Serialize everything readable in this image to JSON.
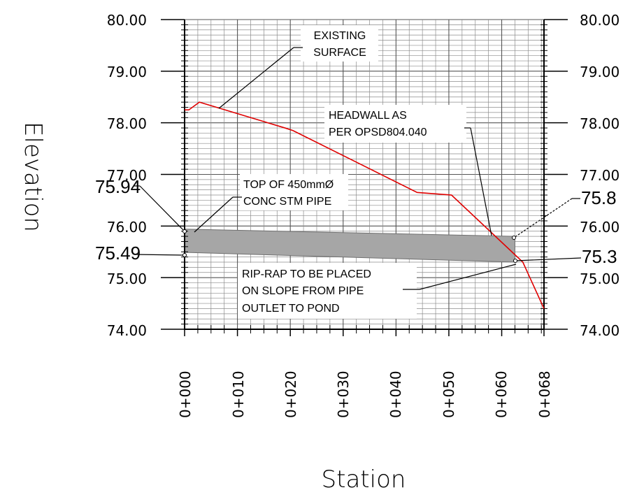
{
  "axes": {
    "xlabel": "Station",
    "ylabel": "Elevation"
  },
  "elevation_ticks": [
    "80.00",
    "79.00",
    "78.00",
    "77.00",
    "76.00",
    "75.00",
    "74.00"
  ],
  "station_ticks": [
    "0+000",
    "0+010",
    "0+020",
    "0+030",
    "0+040",
    "0+050",
    "0+060",
    "0+068"
  ],
  "pipe_labels": {
    "left_top": "75.94",
    "left_bottom": "75.49",
    "right_top": "75.8",
    "right_bottom": "75.3"
  },
  "annotations": {
    "existing_surface": [
      "EXISTING",
      "SURFACE"
    ],
    "headwall": [
      "HEADWALL AS",
      "PER OPSD804.040"
    ],
    "top_of_pipe": [
      "TOP OF 450mmØ",
      "CONC STM PIPE"
    ],
    "rip_rap": [
      "RIP-RAP TO BE PLACED",
      "ON SLOPE FROM PIPE",
      "OUTLET TO POND"
    ]
  },
  "colors": {
    "surface_line": "#e00000",
    "pipe_fill": "#a6a6a6",
    "grid": "#8c8c8c"
  },
  "chart_data": {
    "type": "line",
    "xlim": [
      0,
      68
    ],
    "ylim": [
      74,
      80
    ],
    "series": [
      {
        "x": [
          0,
          0.8,
          2.8,
          19,
          20.5,
          44,
          50.5,
          64,
          68
        ],
        "y": [
          78.25,
          78.25,
          78.4,
          77.9,
          77.85,
          76.65,
          76.6,
          75.3,
          74.4
        ]
      }
    ],
    "pipe": {
      "start_station": 0,
      "end_station": 62.5,
      "start_top": 75.94,
      "start_bottom": 75.49,
      "end_top": 75.8,
      "end_bottom": 75.3
    },
    "grid": true
  }
}
